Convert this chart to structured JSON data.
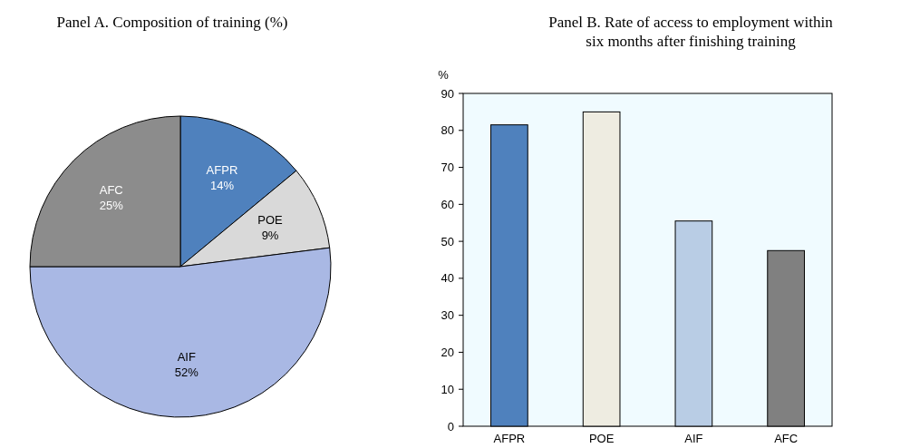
{
  "chart_data": [
    {
      "type": "pie",
      "title": "Panel A. Composition of training (%)",
      "categories": [
        "AFPR",
        "POE",
        "AIF",
        "AFC"
      ],
      "values": [
        14,
        9,
        52,
        25
      ],
      "colors": [
        "#4f81bd",
        "#d9d9d9",
        "#a9b8e4",
        "#8c8c8c"
      ],
      "value_labels": [
        "14%",
        "9%",
        "52%",
        "25%"
      ]
    },
    {
      "type": "bar",
      "title": "Panel B. Rate of access to employment within six months after finishing training",
      "ylabel": "%",
      "categories": [
        "AFPR",
        "POE",
        "AIF",
        "AFC"
      ],
      "values": [
        81.5,
        85,
        55.5,
        47.5
      ],
      "colors": [
        "#4f81bd",
        "#eeece1",
        "#b9cde5",
        "#808080"
      ],
      "ylim": [
        0,
        90
      ],
      "yticks": [
        0,
        10,
        20,
        30,
        40,
        50,
        60,
        70,
        80,
        90
      ],
      "grid": false
    }
  ]
}
